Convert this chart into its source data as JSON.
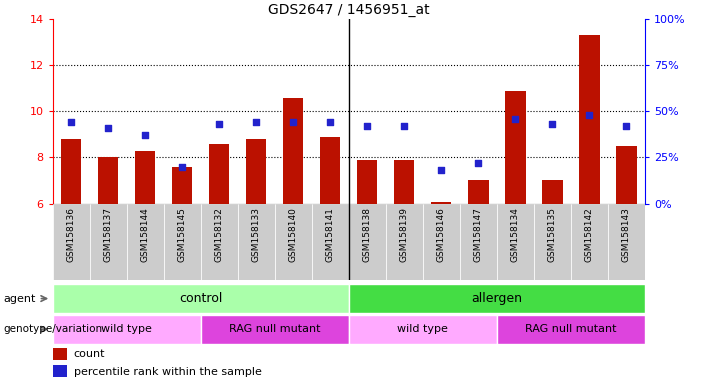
{
  "title": "GDS2647 / 1456951_at",
  "samples": [
    "GSM158136",
    "GSM158137",
    "GSM158144",
    "GSM158145",
    "GSM158132",
    "GSM158133",
    "GSM158140",
    "GSM158141",
    "GSM158138",
    "GSM158139",
    "GSM158146",
    "GSM158147",
    "GSM158134",
    "GSM158135",
    "GSM158142",
    "GSM158143"
  ],
  "count_values": [
    8.8,
    8.0,
    8.3,
    7.6,
    8.6,
    8.8,
    10.6,
    8.9,
    7.9,
    7.9,
    6.05,
    7.0,
    10.9,
    7.0,
    13.3,
    8.5
  ],
  "percentile_values": [
    44,
    41,
    37,
    20,
    43,
    44,
    44,
    44,
    42,
    42,
    18,
    22,
    46,
    43,
    48,
    42
  ],
  "ylim_left": [
    6,
    14
  ],
  "ylim_right": [
    0,
    100
  ],
  "yticks_left": [
    6,
    8,
    10,
    12,
    14
  ],
  "yticks_right": [
    0,
    25,
    50,
    75,
    100
  ],
  "bar_color": "#bb1100",
  "dot_color": "#2222cc",
  "bg_color": "#ffffff",
  "agent_control_color": "#aaffaa",
  "agent_allergen_color": "#44dd44",
  "genotype_wt_color": "#ffaaff",
  "genotype_rag_color": "#dd44dd",
  "agent_label": "agent",
  "genotype_label": "genotype/variation",
  "control_label": "control",
  "allergen_label": "allergen",
  "wt_label": "wild type",
  "rag_label": "RAG null mutant",
  "n_control": 8,
  "n_allergen": 8,
  "n_wt_control": 4,
  "n_rag_control": 4,
  "n_wt_allergen": 4,
  "n_rag_allergen": 4
}
